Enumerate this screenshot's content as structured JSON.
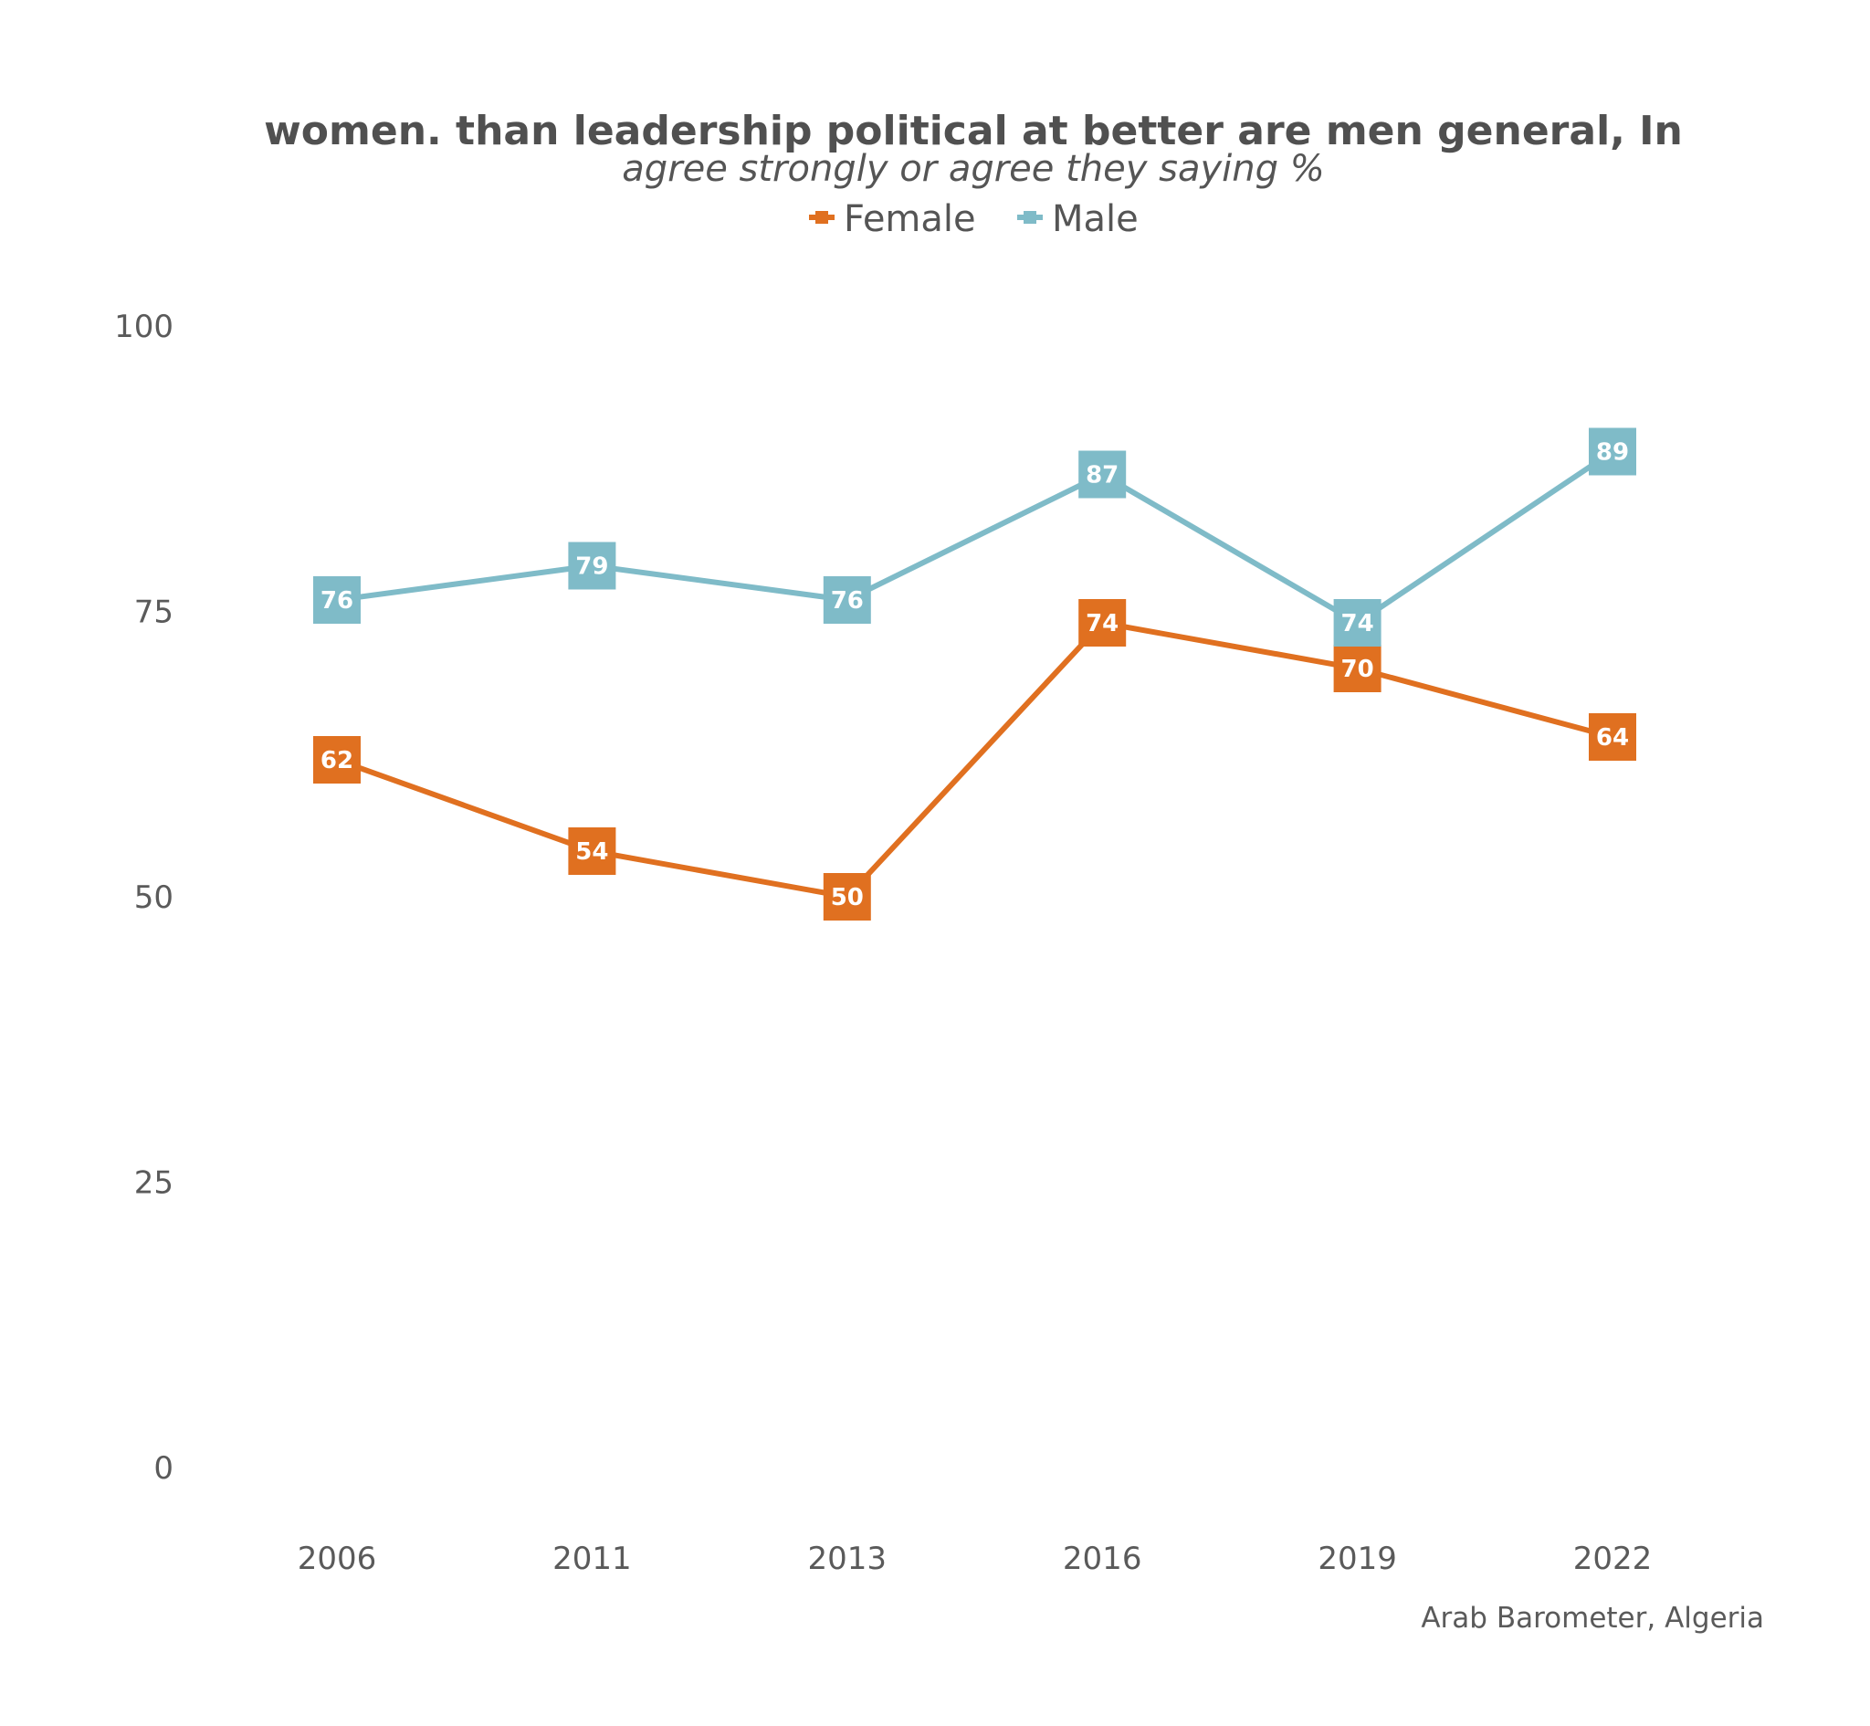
{
  "chart_data": {
    "type": "line",
    "title": "women. than leadership political at better are men general, In",
    "subtitle": "agree strongly or agree they saying %",
    "categories": [
      "2006",
      "2011",
      "2013",
      "2016",
      "2019",
      "2022"
    ],
    "series": [
      {
        "name": "Female",
        "color": "#E07020",
        "values": [
          62,
          54,
          50,
          74,
          70,
          64
        ]
      },
      {
        "name": "Male",
        "color": "#7FBBC8",
        "values": [
          76,
          79,
          76,
          87,
          74,
          89
        ]
      }
    ],
    "ylim": [
      0,
      100
    ],
    "yticks": [
      "0",
      "25",
      "50",
      "75",
      "100"
    ],
    "grid": false,
    "legend_position": "top",
    "source": "Arab Barometer, Algeria"
  }
}
